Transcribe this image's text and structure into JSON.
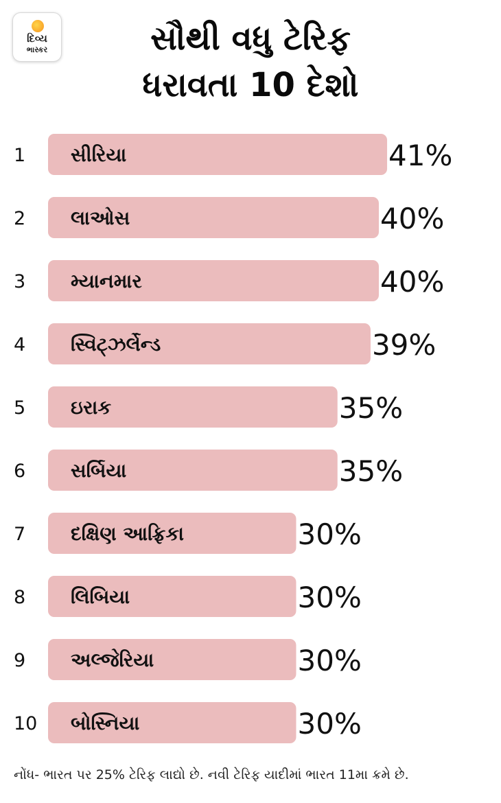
{
  "brand": {
    "line1": "દિવ્ય",
    "line2": "ભાસ્કર",
    "sun_color": "#f7931e"
  },
  "title": {
    "line1": "સૌથી વધુ ટેરિફ",
    "line2": "ધરાવતા 10 દેશો"
  },
  "chart_data": {
    "type": "bar",
    "orientation": "horizontal",
    "ranks": [
      "1",
      "2",
      "3",
      "4",
      "5",
      "6",
      "7",
      "8",
      "9",
      "10"
    ],
    "categories": [
      "સીરિયા",
      "લાઓસ",
      "મ્યાનમાર",
      "સ્વિટ્ઝર્લેન્ડ",
      "ઇરાક",
      "સર્બિયા",
      "દક્ષિણ આફ્રિકા",
      "લિબિયા",
      "અલ્જેરિયા",
      "બોસ્નિયા"
    ],
    "values": [
      41,
      40,
      40,
      39,
      35,
      35,
      30,
      30,
      30,
      30
    ],
    "value_labels": [
      "41%",
      "40%",
      "40%",
      "39%",
      "35%",
      "35%",
      "30%",
      "30%",
      "30%",
      "30%"
    ],
    "unit": "%",
    "bar_color": "#ebbcbd",
    "legend": "none",
    "grid": false
  },
  "note": "નોંધ- ભારત પર 25% ટેરિફ લાદ્યો છે. નવી ટેરિફ યાદીમાં ભારત 11મા ક્રમે છે."
}
